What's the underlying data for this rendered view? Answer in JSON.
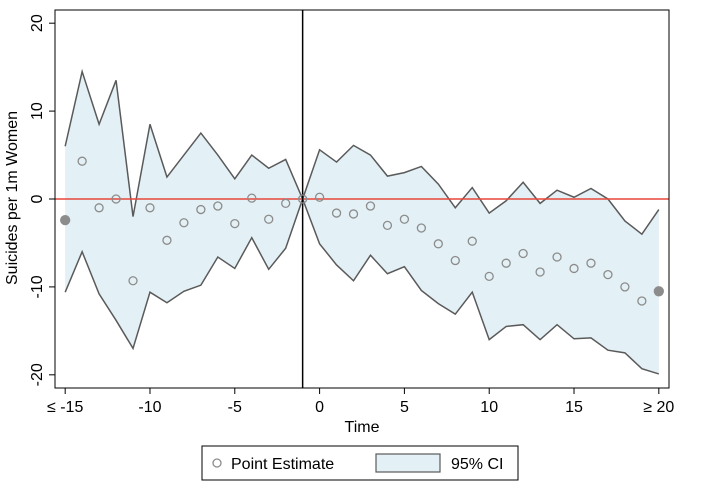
{
  "chart_data": {
    "type": "line",
    "title": "",
    "xlabel": "Time",
    "ylabel": "Suicides per 1m Women",
    "xlim": [
      -15.6,
      20.6
    ],
    "ylim": [
      -21.5,
      21.5
    ],
    "x_ticks": [
      {
        "value": -15,
        "label": "≤ -15"
      },
      {
        "value": -10,
        "label": "-10"
      },
      {
        "value": -5,
        "label": "-5"
      },
      {
        "value": 0,
        "label": "0"
      },
      {
        "value": 5,
        "label": "5"
      },
      {
        "value": 10,
        "label": "10"
      },
      {
        "value": 15,
        "label": "15"
      },
      {
        "value": 20,
        "label": "≥ 20"
      }
    ],
    "y_ticks": [
      {
        "value": 20,
        "label": "20"
      },
      {
        "value": 10,
        "label": "10"
      },
      {
        "value": 0,
        "label": "0"
      },
      {
        "value": -10,
        "label": "-10"
      },
      {
        "value": -20,
        "label": "-20"
      }
    ],
    "reference_hline": {
      "y": 0,
      "color": "#e8473a"
    },
    "reference_vline": {
      "x": -1,
      "color": "#000000"
    },
    "grid": false,
    "legend_position": "bottom",
    "series": [
      {
        "name": "Point Estimate",
        "style": "hollow-circle",
        "color": "#8c8c8c",
        "x": [
          -15,
          -14,
          -13,
          -12,
          -11,
          -10,
          -9,
          -8,
          -7,
          -6,
          -5,
          -4,
          -3,
          -2,
          -1,
          0,
          1,
          2,
          3,
          4,
          5,
          6,
          7,
          8,
          9,
          10,
          11,
          12,
          13,
          14,
          15,
          16,
          17,
          18,
          19,
          20
        ],
        "y": [
          -2.4,
          4.3,
          -1.0,
          0.0,
          -9.3,
          -1.0,
          -4.7,
          -2.7,
          -1.2,
          -0.8,
          -2.8,
          0.1,
          -2.3,
          -0.5,
          0.0,
          0.2,
          -1.6,
          -1.7,
          -0.8,
          -3.0,
          -2.3,
          -3.3,
          -5.1,
          -7.0,
          -4.8,
          -8.8,
          -7.3,
          -6.2,
          -8.3,
          -6.6,
          -7.9,
          -7.3,
          -8.6,
          -10.0,
          -11.6,
          -10.5
        ],
        "filled_endpoints": [
          -15,
          20
        ]
      },
      {
        "name": "95% CI",
        "style": "band",
        "fill": "#e3f0f5",
        "stroke": "#5a5a5a",
        "x": [
          -15,
          -14,
          -13,
          -12,
          -11,
          -10,
          -9,
          -8,
          -7,
          -6,
          -5,
          -4,
          -3,
          -2,
          -1,
          0,
          1,
          2,
          3,
          4,
          5,
          6,
          7,
          8,
          9,
          10,
          11,
          12,
          13,
          14,
          15,
          16,
          17,
          18,
          19,
          20
        ],
        "upper": [
          6.0,
          14.5,
          8.5,
          13.5,
          -2.0,
          8.5,
          2.5,
          5.0,
          7.5,
          5.0,
          2.3,
          5.0,
          3.5,
          4.5,
          0.0,
          5.6,
          4.2,
          6.1,
          5.0,
          2.6,
          3.0,
          3.7,
          1.7,
          -1.0,
          1.3,
          -1.6,
          -0.2,
          1.9,
          -0.5,
          1.0,
          0.2,
          1.2,
          0.0,
          -2.5,
          -4.0,
          -1.2
        ],
        "lower": [
          -10.6,
          -6.0,
          -10.8,
          -13.8,
          -17.0,
          -10.6,
          -11.8,
          -10.5,
          -9.8,
          -6.6,
          -7.9,
          -4.4,
          -8.0,
          -5.6,
          0.0,
          -5.1,
          -7.5,
          -9.3,
          -6.4,
          -8.5,
          -7.7,
          -10.4,
          -11.9,
          -13.1,
          -10.6,
          -16.0,
          -14.5,
          -14.3,
          -16.0,
          -14.3,
          -15.9,
          -15.8,
          -17.2,
          -17.5,
          -19.3,
          -19.9
        ]
      }
    ]
  }
}
